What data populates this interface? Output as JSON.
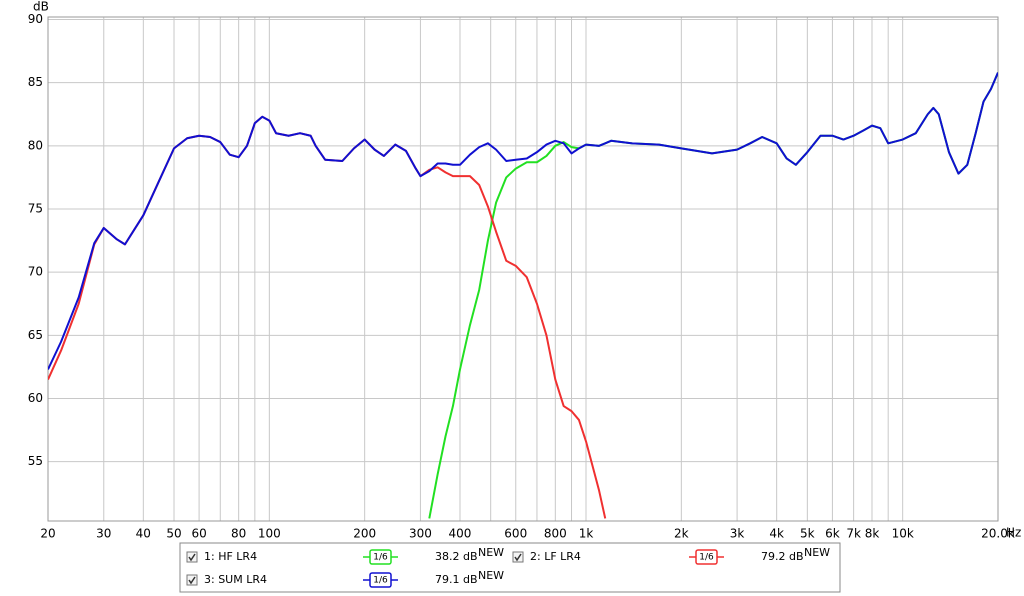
{
  "chart_data": {
    "type": "line",
    "y_label": "dB",
    "x_unit": "Hz",
    "log_x": true,
    "grid": true,
    "xlim": [
      20,
      20000
    ],
    "ylim": [
      50.3,
      90.2
    ],
    "yticks": [
      90,
      85,
      80,
      75,
      70,
      65,
      60,
      55
    ],
    "xticks": [
      20,
      30,
      40,
      50,
      60,
      80,
      100,
      200,
      300,
      400,
      600,
      800,
      {
        "value": 1000,
        "label": "1k"
      },
      {
        "value": 2000,
        "label": "2k"
      },
      {
        "value": 3000,
        "label": "3k"
      },
      {
        "value": 4000,
        "label": "4k"
      },
      {
        "value": 5000,
        "label": "5k"
      },
      {
        "value": 6000,
        "label": "6k"
      },
      {
        "value": 7000,
        "label": "7k"
      },
      {
        "value": 8000,
        "label": "8k"
      },
      {
        "value": 10000,
        "label": "10k"
      },
      {
        "value": 20000,
        "label": "20.0k"
      }
    ],
    "x_minor_ticks": [
      70,
      90,
      500,
      700,
      900,
      9000
    ],
    "x": [
      20,
      22,
      25,
      28,
      30,
      33,
      35,
      40,
      45,
      50,
      55,
      60,
      65,
      70,
      75,
      80,
      85,
      90,
      95,
      100,
      105,
      115,
      125,
      135,
      140,
      150,
      170,
      185,
      200,
      215,
      230,
      250,
      270,
      290,
      300,
      320,
      340,
      360,
      380,
      400,
      430,
      460,
      490,
      520,
      560,
      600,
      650,
      700,
      750,
      800,
      850,
      900,
      950,
      1000,
      1100,
      1150,
      1200,
      1400,
      1700,
      2000,
      2500,
      3000,
      3300,
      3600,
      4000,
      4300,
      4600,
      5000,
      5500,
      6000,
      6500,
      7000,
      7500,
      8000,
      8500,
      9000,
      10000,
      11000,
      12000,
      12500,
      13000,
      14000,
      15000,
      16000,
      17000,
      18000,
      19000,
      20000
    ],
    "series": [
      {
        "name": "1: HF LR4",
        "color": "#22e022",
        "smoothing": "1/6",
        "readout": "38.2 dB",
        "badge": "NEW",
        "values": [
          null,
          null,
          null,
          null,
          null,
          null,
          null,
          null,
          null,
          null,
          null,
          null,
          null,
          null,
          null,
          null,
          null,
          null,
          null,
          null,
          null,
          null,
          null,
          null,
          null,
          null,
          null,
          null,
          null,
          null,
          null,
          null,
          null,
          null,
          null,
          50.5,
          54,
          57,
          59.4,
          62.3,
          65.8,
          68.6,
          72.5,
          75.5,
          77.5,
          78.2,
          78.7,
          78.7,
          79.2,
          80,
          80.3,
          79.9,
          79.8,
          80.1,
          80,
          80.2,
          80.4,
          80.2,
          80.1,
          79.8,
          79.4,
          79.7,
          80.2,
          80.7,
          80.2,
          79,
          78.5,
          79.5,
          80.8,
          80.8,
          80.5,
          80.8,
          81.2,
          81.6,
          81.4,
          80.2,
          80.5,
          81,
          82.5,
          83,
          82.5,
          79.5,
          77.8,
          78.5,
          81,
          83.5,
          84.5,
          85.8
        ]
      },
      {
        "name": "2: LF LR4",
        "color": "#f03030",
        "smoothing": "1/6",
        "readout": "79.2 dB",
        "badge": "NEW",
        "values": [
          61.5,
          63.8,
          67.5,
          72.2,
          73.5,
          72.6,
          72.2,
          74.5,
          77.3,
          79.8,
          80.6,
          80.8,
          80.7,
          80.3,
          79.3,
          79.1,
          80,
          81.8,
          82.3,
          82,
          81,
          80.8,
          81,
          80.8,
          80,
          78.9,
          78.8,
          79.8,
          80.5,
          79.7,
          79.2,
          80.1,
          79.6,
          78.2,
          77.6,
          78.1,
          78.3,
          77.9,
          77.6,
          77.6,
          77.6,
          76.9,
          75.2,
          73.2,
          70.9,
          70.5,
          69.6,
          67.5,
          65,
          61.5,
          59.4,
          59,
          58.3,
          56.6,
          52.7,
          50.5,
          null,
          null,
          null,
          null,
          null,
          null,
          null,
          null,
          null,
          null,
          null,
          null,
          null,
          null,
          null,
          null,
          null,
          null,
          null,
          null,
          null,
          null,
          null,
          null,
          null,
          null,
          null,
          null,
          null,
          null,
          null,
          null
        ]
      },
      {
        "name": "3: SUM LR4",
        "color": "#1010d0",
        "smoothing": "1/6",
        "readout": "79.1 dB",
        "badge": "NEW",
        "values": [
          62.3,
          64.5,
          68,
          72.3,
          73.5,
          72.6,
          72.2,
          74.5,
          77.3,
          79.8,
          80.6,
          80.8,
          80.7,
          80.3,
          79.3,
          79.1,
          80,
          81.8,
          82.3,
          82,
          81,
          80.8,
          81,
          80.8,
          80,
          78.9,
          78.8,
          79.8,
          80.5,
          79.7,
          79.2,
          80.1,
          79.6,
          78.2,
          77.6,
          78,
          78.6,
          78.6,
          78.5,
          78.5,
          79.3,
          79.9,
          80.2,
          79.7,
          78.8,
          78.9,
          79,
          79.5,
          80.1,
          80.4,
          80.2,
          79.4,
          79.8,
          80.1,
          80,
          80.2,
          80.4,
          80.2,
          80.1,
          79.8,
          79.4,
          79.7,
          80.2,
          80.7,
          80.2,
          79,
          78.5,
          79.5,
          80.8,
          80.8,
          80.5,
          80.8,
          81.2,
          81.6,
          81.4,
          80.2,
          80.5,
          81,
          82.5,
          83,
          82.5,
          79.5,
          77.8,
          78.5,
          81,
          83.5,
          84.5,
          85.8
        ]
      }
    ]
  }
}
